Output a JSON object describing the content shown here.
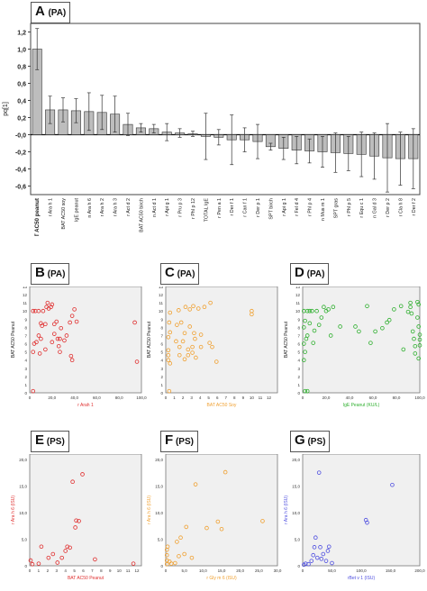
{
  "panel_A": {
    "label": "A",
    "sublabel": "(PA)",
    "chart_data": {
      "type": "bar",
      "ylabel": "pq[1]",
      "ylim": [
        -0.7,
        1.3
      ],
      "yticks": [
        -0.6,
        -0.4,
        -0.2,
        0.0,
        0.2,
        0.4,
        0.6,
        0.8,
        1.0,
        1.2
      ],
      "ytick_labels": [
        "-0,6",
        "-0,4",
        "-0,2",
        "-0,0",
        "0,2",
        "0,4",
        "0,6",
        "0,8",
        "1,0",
        "1,2"
      ],
      "categories": [
        "BAT AC50 peanut",
        "r Ara h 1",
        "BAT AC50 soy",
        "IgE peanut",
        "n Ara h 6",
        "r Ara h 2",
        "r Ara h 3",
        "r Act d 2",
        "BAT AC50 birch",
        "n Act d 1",
        "r Api g 1",
        "r Pru p 3",
        "r Phl p 12",
        "TOTAL IgE",
        "r Pen a 1",
        "r Der f 1",
        "r Can f 1",
        "r Der p 1",
        "SPT birch",
        "r Api g 1",
        "r Fel d 4",
        "r Phl p 4",
        "n Mus m 1",
        "SPT gras",
        "r Phl p 5",
        "r Equ c 1",
        "n Gal d 3",
        "r Der p 2",
        "r Cla h 8",
        "r Der f 2"
      ],
      "values": [
        1.0,
        0.29,
        0.29,
        0.28,
        0.27,
        0.26,
        0.24,
        0.12,
        0.08,
        0.07,
        0.03,
        0.02,
        0.01,
        -0.02,
        -0.03,
        -0.06,
        -0.06,
        -0.08,
        -0.14,
        -0.16,
        -0.18,
        -0.19,
        -0.2,
        -0.21,
        -0.22,
        -0.23,
        -0.25,
        -0.27,
        -0.28,
        -0.28
      ],
      "errors": [
        0.24,
        0.16,
        0.14,
        0.14,
        0.22,
        0.2,
        0.21,
        0.13,
        0.05,
        0.05,
        0.1,
        0.05,
        0.03,
        0.27,
        0.09,
        0.29,
        0.14,
        0.2,
        0.04,
        0.13,
        0.16,
        0.14,
        0.18,
        0.23,
        0.2,
        0.26,
        0.27,
        0.4,
        0.31,
        0.35
      ]
    }
  },
  "scatter_panels": [
    {
      "id": "B",
      "label": "B",
      "sublabel": "(PA)",
      "color": "#e03030",
      "xlabel": "r Arah 1",
      "ylabel": "BAT AC50 Peanut",
      "xlim": [
        0,
        100
      ],
      "ylim": [
        0,
        13
      ],
      "xticks": [
        "0",
        "20,0",
        "40,0",
        "60,0",
        "80,0",
        "100,0"
      ],
      "yticks": [
        "0",
        "1",
        "2",
        "3",
        "4",
        "5",
        "6",
        "7",
        "8",
        "9",
        "10",
        "11",
        "12",
        "13"
      ],
      "points": [
        [
          3,
          10
        ],
        [
          5,
          10
        ],
        [
          8,
          10
        ],
        [
          12,
          10
        ],
        [
          15,
          10.5
        ],
        [
          16,
          11
        ],
        [
          17,
          10.3
        ],
        [
          19,
          10.5
        ],
        [
          20,
          10.8
        ],
        [
          10,
          8.5
        ],
        [
          11,
          8.2
        ],
        [
          14,
          8.4
        ],
        [
          22,
          8.4
        ],
        [
          24,
          8.7
        ],
        [
          36,
          8.6
        ],
        [
          38,
          9.4
        ],
        [
          40,
          10.2
        ],
        [
          42,
          8.7
        ],
        [
          28,
          7.9
        ],
        [
          8,
          7
        ],
        [
          10,
          6.6
        ],
        [
          4,
          6
        ],
        [
          6,
          6.2
        ],
        [
          3,
          5
        ],
        [
          9,
          4.8
        ],
        [
          14,
          5.3
        ],
        [
          20,
          6.2
        ],
        [
          22,
          7.2
        ],
        [
          25,
          6.6
        ],
        [
          27,
          6.6
        ],
        [
          31,
          6.4
        ],
        [
          33,
          7
        ],
        [
          26,
          5.7
        ],
        [
          27,
          5
        ],
        [
          38,
          4
        ],
        [
          37,
          4.5
        ],
        [
          94,
          8.6
        ],
        [
          96,
          3.8
        ],
        [
          3,
          0.2
        ]
      ]
    },
    {
      "id": "C",
      "label": "C",
      "sublabel": "(PA)",
      "color": "#f0a030",
      "xlabel": "BAT AC50 Soy",
      "ylabel": "BAT AC50 Peanut",
      "xlim": [
        0,
        13
      ],
      "ylim": [
        0,
        13
      ],
      "xticks": [
        "0",
        "1",
        "2",
        "3",
        "4",
        "5",
        "6",
        "7",
        "8",
        "9",
        "10",
        "11",
        "12"
      ],
      "yticks": [
        "0",
        "1",
        "2",
        "3",
        "4",
        "5",
        "6",
        "7",
        "8",
        "9",
        "10",
        "11",
        "12",
        "13"
      ],
      "points": [
        [
          0.3,
          4
        ],
        [
          0.3,
          4.6
        ],
        [
          0.3,
          5.2
        ],
        [
          0.5,
          3.6
        ],
        [
          0.3,
          6.8
        ],
        [
          0.5,
          7.4
        ],
        [
          0.4,
          8.6
        ],
        [
          0.5,
          9.8
        ],
        [
          1.5,
          10.1
        ],
        [
          2.3,
          10.5
        ],
        [
          2.8,
          10.2
        ],
        [
          3.2,
          10.6
        ],
        [
          3.8,
          10.3
        ],
        [
          4.5,
          10.5
        ],
        [
          5.2,
          11
        ],
        [
          1.3,
          8.3
        ],
        [
          1.8,
          8.6
        ],
        [
          2.2,
          7.3
        ],
        [
          2.8,
          8.1
        ],
        [
          3.3,
          7.3
        ],
        [
          4.1,
          7.1
        ],
        [
          5.1,
          6.1
        ],
        [
          1.2,
          6.3
        ],
        [
          1.6,
          5.6
        ],
        [
          2,
          6.3
        ],
        [
          2.6,
          5.3
        ],
        [
          3.1,
          5.6
        ],
        [
          3.4,
          6.6
        ],
        [
          4.1,
          5.6
        ],
        [
          5.4,
          5.6
        ],
        [
          1.6,
          4.6
        ],
        [
          2.2,
          4.1
        ],
        [
          2.6,
          4.6
        ],
        [
          3.1,
          4.9
        ],
        [
          3.5,
          4.3
        ],
        [
          5.9,
          3.8
        ],
        [
          10,
          10
        ],
        [
          10,
          9.6
        ],
        [
          0.4,
          0.2
        ]
      ]
    },
    {
      "id": "D",
      "label": "D",
      "sublabel": "(PA)",
      "color": "#30b030",
      "xlabel": "IgE Peanut (KU/L)",
      "ylabel": "BAT AC50 Peanut",
      "xlim": [
        0,
        100
      ],
      "ylim": [
        0,
        13
      ],
      "xticks": [
        "0",
        "20,0",
        "40,0",
        "60,0",
        "80,0",
        "100,0"
      ],
      "yticks": [
        "0",
        "1",
        "2",
        "3",
        "4",
        "5",
        "6",
        "7",
        "8",
        "9",
        "10",
        "11",
        "12",
        "13"
      ],
      "points": [
        [
          1,
          4
        ],
        [
          2,
          5
        ],
        [
          1,
          6
        ],
        [
          3,
          6.6
        ],
        [
          4,
          7
        ],
        [
          1,
          8
        ],
        [
          2,
          8.8
        ],
        [
          1,
          10
        ],
        [
          4,
          10
        ],
        [
          6,
          10
        ],
        [
          8,
          10
        ],
        [
          12,
          10
        ],
        [
          6,
          8.5
        ],
        [
          9,
          6.1
        ],
        [
          10,
          7.6
        ],
        [
          14,
          8.3
        ],
        [
          16,
          9.2
        ],
        [
          18,
          10.5
        ],
        [
          20,
          10
        ],
        [
          22,
          10.2
        ],
        [
          24,
          7
        ],
        [
          26,
          10.5
        ],
        [
          32,
          8.1
        ],
        [
          45,
          8.1
        ],
        [
          48,
          7.5
        ],
        [
          55,
          10.6
        ],
        [
          58,
          6.1
        ],
        [
          62,
          7.5
        ],
        [
          68,
          7.9
        ],
        [
          72,
          8.6
        ],
        [
          74,
          8.9
        ],
        [
          78,
          10.2
        ],
        [
          84,
          10.6
        ],
        [
          86,
          5.3
        ],
        [
          90,
          9.9
        ],
        [
          92,
          10.5
        ],
        [
          92,
          11
        ],
        [
          93,
          9.7
        ],
        [
          94,
          7.5
        ],
        [
          95,
          6.6
        ],
        [
          96,
          4.8
        ],
        [
          96,
          5.7
        ],
        [
          98,
          11.1
        ],
        [
          98,
          9.2
        ],
        [
          99,
          8.1
        ],
        [
          99,
          10.8
        ],
        [
          100,
          5.8
        ],
        [
          100,
          6.5
        ],
        [
          100,
          7.1
        ],
        [
          99,
          4.2
        ],
        [
          2,
          0.2
        ],
        [
          4,
          0.2
        ]
      ]
    },
    {
      "id": "E",
      "label": "E",
      "sublabel": "(PS)",
      "color": "#e03030",
      "xlabel": "BAT AC50 Peanut",
      "ylabel": "r Ara h 6 (ISU)",
      "xlim": [
        0,
        12.5
      ],
      "ylim": [
        0,
        21
      ],
      "xticks": [
        "0",
        "1",
        "2",
        "3",
        "4",
        "5",
        "6",
        "7",
        "8",
        "9",
        "10",
        "11",
        "12"
      ],
      "yticks": [
        "0",
        "5,0",
        "10,0",
        "15,0",
        "20,0"
      ],
      "points": [
        [
          0.1,
          1
        ],
        [
          0.3,
          0.3
        ],
        [
          1,
          0.4
        ],
        [
          1.3,
          3.6
        ],
        [
          2.1,
          1.5
        ],
        [
          2.6,
          2.2
        ],
        [
          3.1,
          0.6
        ],
        [
          3.6,
          1.5
        ],
        [
          4,
          2.8
        ],
        [
          4.2,
          3.6
        ],
        [
          4.5,
          3.4
        ],
        [
          4.8,
          15.8
        ],
        [
          5.1,
          7.2
        ],
        [
          5.2,
          8.5
        ],
        [
          5.5,
          8.4
        ],
        [
          5.9,
          17.2
        ],
        [
          7.3,
          1.2
        ],
        [
          11.6,
          0.4
        ]
      ]
    },
    {
      "id": "F",
      "label": "F",
      "sublabel": "(PS)",
      "color": "#f0a030",
      "xlabel": "r Gly m 6 (ISU)",
      "ylabel": "r Ara h 6 (ISU)",
      "xlim": [
        0,
        30
      ],
      "ylim": [
        0,
        21
      ],
      "xticks": [
        "0",
        "5,0",
        "10,0",
        "15,0",
        "20,0",
        "25,0",
        "30,0"
      ],
      "yticks": [
        "0",
        "5,0",
        "10,0",
        "15,0",
        "20,0"
      ],
      "points": [
        [
          0.3,
          0.3
        ],
        [
          0.3,
          1
        ],
        [
          0.3,
          2
        ],
        [
          0.3,
          3
        ],
        [
          0.5,
          3.6
        ],
        [
          1,
          0.8
        ],
        [
          1.5,
          0.4
        ],
        [
          2.5,
          0.5
        ],
        [
          3,
          4.5
        ],
        [
          3.5,
          1.8
        ],
        [
          4,
          5.3
        ],
        [
          5,
          2.2
        ],
        [
          5.5,
          7.3
        ],
        [
          7,
          1.5
        ],
        [
          8,
          15.3
        ],
        [
          11,
          7.1
        ],
        [
          14,
          8.3
        ],
        [
          15,
          6.9
        ],
        [
          16,
          17.6
        ],
        [
          26,
          8.4
        ]
      ]
    },
    {
      "id": "G",
      "label": "G",
      "sublabel": "(PS)",
      "color": "#5050e0",
      "xlabel": "rBet v 1 (ISU)",
      "ylabel": "r Ara h 6 (ISU)",
      "xlim": [
        0,
        200
      ],
      "ylim": [
        0,
        21
      ],
      "xticks": [
        "0",
        "50,0",
        "100,0",
        "150,0",
        "200,0"
      ],
      "yticks": [
        "0",
        "5,0",
        "10,0",
        "15,0",
        "20,0"
      ],
      "points": [
        [
          2,
          0.2
        ],
        [
          5,
          0.4
        ],
        [
          10,
          0.3
        ],
        [
          15,
          0.9
        ],
        [
          18,
          2
        ],
        [
          20,
          3.5
        ],
        [
          22,
          5.3
        ],
        [
          25,
          1.5
        ],
        [
          28,
          17.5
        ],
        [
          30,
          3.5
        ],
        [
          32,
          1.3
        ],
        [
          35,
          2.2
        ],
        [
          40,
          0.9
        ],
        [
          43,
          2.8
        ],
        [
          45,
          3.6
        ],
        [
          50,
          0.5
        ],
        [
          108,
          8.6
        ],
        [
          110,
          8.1
        ],
        [
          153,
          15.2
        ]
      ]
    }
  ]
}
